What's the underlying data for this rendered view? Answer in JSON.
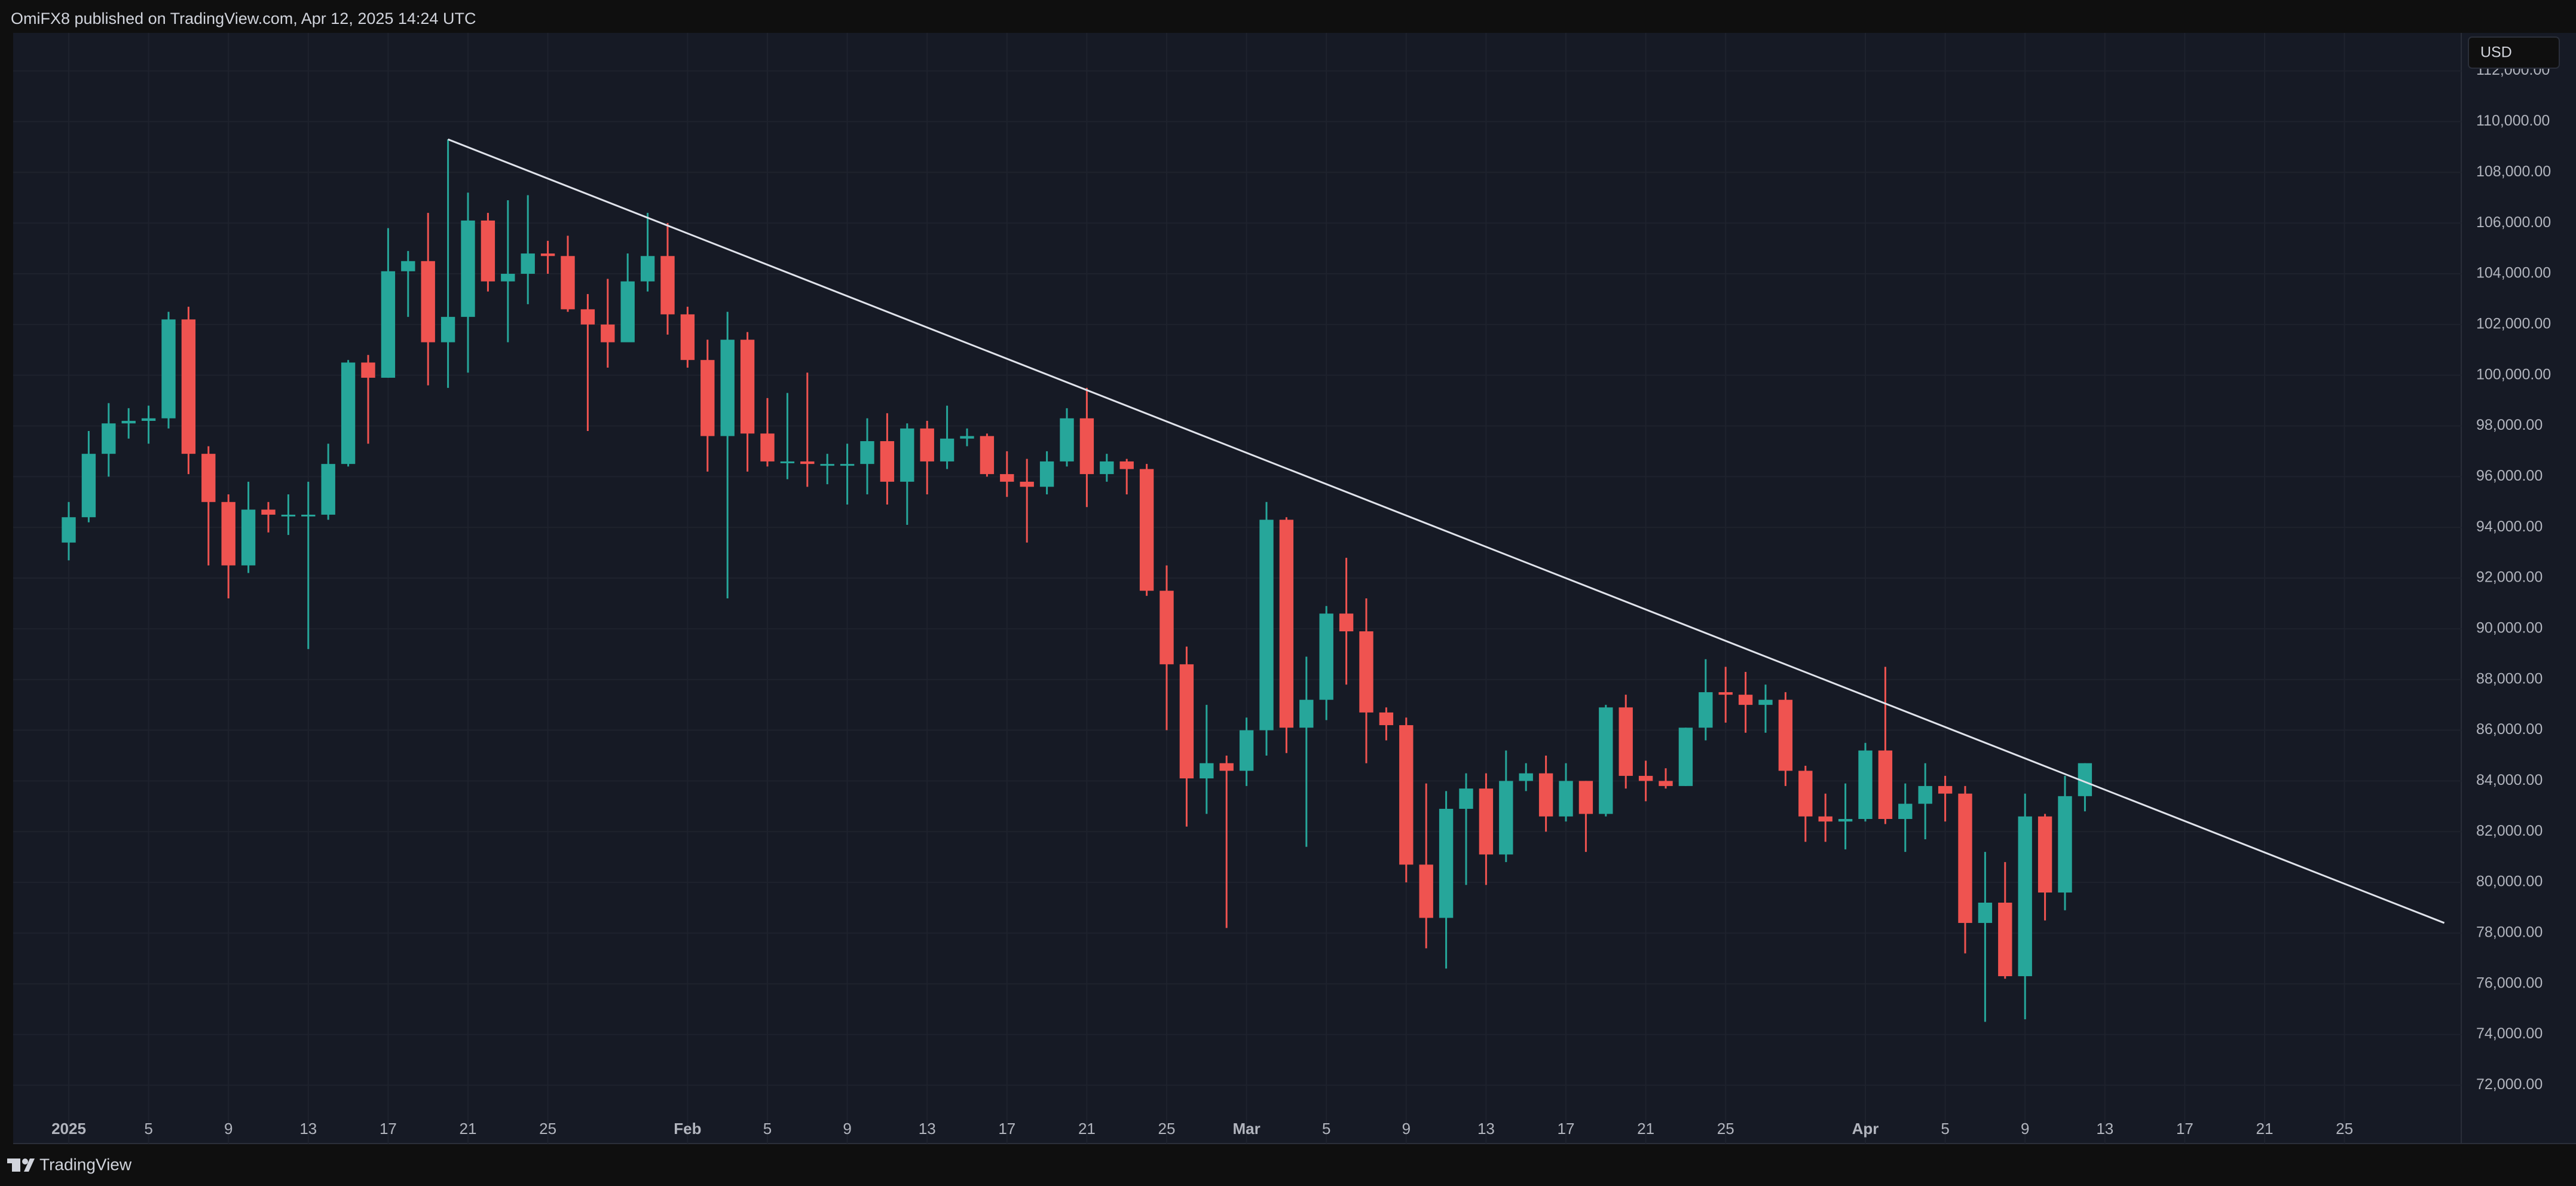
{
  "header": "OmiFX8 published on TradingView.com, Apr 12, 2025 14:24 UTC",
  "footer": "TradingView",
  "chart_data": {
    "type": "candlestick",
    "currency": "USD",
    "up_color": "#26a69a",
    "down_color": "#ef5350",
    "grid": true,
    "x": [
      "2025-01-01",
      "2025-01-02",
      "2025-01-03",
      "2025-01-04",
      "2025-01-05",
      "2025-01-06",
      "2025-01-07",
      "2025-01-08",
      "2025-01-09",
      "2025-01-10",
      "2025-01-11",
      "2025-01-12",
      "2025-01-13",
      "2025-01-14",
      "2025-01-15",
      "2025-01-16",
      "2025-01-17",
      "2025-01-18",
      "2025-01-19",
      "2025-01-20",
      "2025-01-21",
      "2025-01-22",
      "2025-01-23",
      "2025-01-24",
      "2025-01-25",
      "2025-01-26",
      "2025-01-27",
      "2025-01-28",
      "2025-01-29",
      "2025-01-30",
      "2025-01-31",
      "2025-02-01",
      "2025-02-02",
      "2025-02-03",
      "2025-02-04",
      "2025-02-05",
      "2025-02-06",
      "2025-02-07",
      "2025-02-08",
      "2025-02-09",
      "2025-02-10",
      "2025-02-11",
      "2025-02-12",
      "2025-02-13",
      "2025-02-14",
      "2025-02-15",
      "2025-02-16",
      "2025-02-17",
      "2025-02-18",
      "2025-02-19",
      "2025-02-20",
      "2025-02-21",
      "2025-02-22",
      "2025-02-23",
      "2025-02-24",
      "2025-02-25",
      "2025-02-26",
      "2025-02-27",
      "2025-02-28",
      "2025-03-01",
      "2025-03-02",
      "2025-03-03",
      "2025-03-04",
      "2025-03-05",
      "2025-03-06",
      "2025-03-07",
      "2025-03-08",
      "2025-03-09",
      "2025-03-10",
      "2025-03-11",
      "2025-03-12",
      "2025-03-13",
      "2025-03-14",
      "2025-03-15",
      "2025-03-16",
      "2025-03-17",
      "2025-03-18",
      "2025-03-19",
      "2025-03-20",
      "2025-03-21",
      "2025-03-22",
      "2025-03-23",
      "2025-03-24",
      "2025-03-25",
      "2025-03-26",
      "2025-03-27",
      "2025-03-28",
      "2025-03-29",
      "2025-03-30",
      "2025-03-31",
      "2025-04-01",
      "2025-04-02",
      "2025-04-03",
      "2025-04-04",
      "2025-04-05",
      "2025-04-06",
      "2025-04-07",
      "2025-04-08",
      "2025-04-09",
      "2025-04-10",
      "2025-04-11",
      "2025-04-12"
    ],
    "open": [
      93400,
      94400,
      96900,
      98100,
      98200,
      98300,
      102200,
      96900,
      95000,
      92500,
      94700,
      94500,
      94500,
      94500,
      96500,
      100500,
      99900,
      104100,
      104500,
      101300,
      102300,
      106100,
      103700,
      104000,
      104800,
      104700,
      102600,
      102000,
      101300,
      103700,
      104700,
      102400,
      100600,
      97600,
      101400,
      97700,
      96600,
      96600,
      96500,
      96500,
      96500,
      97400,
      95800,
      97900,
      96600,
      97500,
      97600,
      96100,
      95800,
      95600,
      96600,
      98300,
      96100,
      96600,
      96300,
      91500,
      88600,
      84100,
      84700,
      84400,
      86000,
      94300,
      86100,
      87200,
      90600,
      89900,
      86700,
      86200,
      80700,
      78600,
      82900,
      83700,
      81100,
      84000,
      84300,
      82600,
      84000,
      82700,
      86900,
      84200,
      84000,
      83800,
      86100,
      87500,
      87400,
      87000,
      87200,
      84400,
      82600,
      82400,
      82500,
      85200,
      82500,
      83100,
      83800,
      83500,
      78400,
      79200,
      76300,
      82600,
      79600,
      83400
    ],
    "high": [
      95000,
      97800,
      98900,
      98700,
      98800,
      102500,
      102700,
      97200,
      95300,
      95800,
      95000,
      95300,
      95800,
      97300,
      100600,
      100800,
      105800,
      104900,
      106400,
      109300,
      107200,
      106400,
      106900,
      107100,
      105300,
      105500,
      103200,
      103800,
      104800,
      106400,
      106000,
      102700,
      101400,
      102500,
      101700,
      99100,
      99300,
      100100,
      96900,
      97300,
      98300,
      98500,
      98100,
      98200,
      98800,
      97900,
      97700,
      97000,
      96700,
      97000,
      98700,
      99500,
      96900,
      96700,
      96500,
      92500,
      89300,
      87000,
      85000,
      86500,
      95000,
      94400,
      88900,
      90900,
      92800,
      91200,
      86900,
      86500,
      83900,
      83600,
      84300,
      84300,
      85200,
      84700,
      85000,
      84700,
      84000,
      87000,
      87400,
      84800,
      84500,
      86100,
      88800,
      88500,
      88300,
      87800,
      87500,
      84600,
      83500,
      83900,
      85500,
      88500,
      83900,
      84700,
      84200,
      83800,
      81200,
      80800,
      83500,
      82700,
      84200,
      84700
    ],
    "low": [
      92700,
      94200,
      96000,
      97500,
      97300,
      97900,
      96100,
      92500,
      91200,
      92200,
      93800,
      93700,
      89200,
      94300,
      96400,
      97300,
      99900,
      102300,
      99600,
      99500,
      100100,
      103300,
      101300,
      102800,
      104000,
      102500,
      97800,
      100300,
      101300,
      103300,
      101600,
      100300,
      96200,
      91200,
      96200,
      96400,
      95900,
      95600,
      95700,
      94900,
      95300,
      94900,
      94100,
      95300,
      96300,
      97200,
      96000,
      95200,
      93400,
      95300,
      96400,
      94800,
      95800,
      95300,
      91300,
      86000,
      82200,
      82700,
      78200,
      83800,
      85000,
      85100,
      81400,
      86400,
      87800,
      84700,
      85600,
      80000,
      77400,
      76600,
      79900,
      79900,
      80800,
      83600,
      82000,
      82400,
      81200,
      82600,
      83700,
      83200,
      83700,
      83800,
      85600,
      86300,
      85900,
      85900,
      83800,
      81600,
      81600,
      81300,
      82400,
      82300,
      81200,
      81700,
      82400,
      77200,
      74500,
      76200,
      74600,
      78500,
      78900,
      82800
    ],
    "close": [
      94400,
      96900,
      98100,
      98200,
      98300,
      102200,
      96900,
      95000,
      92500,
      94700,
      94500,
      94500,
      94500,
      96500,
      100500,
      99900,
      104100,
      104500,
      101300,
      102300,
      106100,
      103700,
      104000,
      104800,
      104700,
      102600,
      102000,
      101300,
      103700,
      104700,
      102400,
      100600,
      97600,
      101400,
      97700,
      96600,
      96600,
      96500,
      96500,
      96500,
      97400,
      95800,
      97900,
      96600,
      97500,
      97600,
      96100,
      95800,
      95600,
      96600,
      98300,
      96100,
      96600,
      96300,
      91500,
      88600,
      84100,
      84700,
      84400,
      86000,
      94300,
      86100,
      87200,
      90600,
      89900,
      86700,
      86200,
      80700,
      78600,
      82900,
      83700,
      81100,
      84000,
      84300,
      82600,
      84000,
      82700,
      86900,
      84200,
      84000,
      83800,
      86100,
      87500,
      87400,
      87000,
      87200,
      84400,
      82600,
      82400,
      82500,
      85200,
      82500,
      83100,
      83800,
      83500,
      78400,
      79200,
      76300,
      82600,
      79600,
      83400,
      84700
    ],
    "trendline": {
      "x": [
        "2025-01-20",
        "2025-04-30"
      ],
      "y": [
        109300,
        78400
      ],
      "color": "#e0e3eb"
    },
    "xlim": [
      "2025-01-01",
      "2025-05-01"
    ],
    "xticks": [
      {
        "value": "2025-01-01",
        "label": "2025"
      },
      {
        "value": "2025-01-05",
        "label": "5"
      },
      {
        "value": "2025-01-09",
        "label": "9"
      },
      {
        "value": "2025-01-13",
        "label": "13"
      },
      {
        "value": "2025-01-17",
        "label": "17"
      },
      {
        "value": "2025-01-21",
        "label": "21"
      },
      {
        "value": "2025-01-25",
        "label": "25"
      },
      {
        "value": "2025-02-01",
        "label": "Feb"
      },
      {
        "value": "2025-02-05",
        "label": "5"
      },
      {
        "value": "2025-02-09",
        "label": "9"
      },
      {
        "value": "2025-02-13",
        "label": "13"
      },
      {
        "value": "2025-02-17",
        "label": "17"
      },
      {
        "value": "2025-02-21",
        "label": "21"
      },
      {
        "value": "2025-02-25",
        "label": "25"
      },
      {
        "value": "2025-03-01",
        "label": "Mar"
      },
      {
        "value": "2025-03-05",
        "label": "5"
      },
      {
        "value": "2025-03-09",
        "label": "9"
      },
      {
        "value": "2025-03-13",
        "label": "13"
      },
      {
        "value": "2025-03-17",
        "label": "17"
      },
      {
        "value": "2025-03-21",
        "label": "21"
      },
      {
        "value": "2025-03-25",
        "label": "25"
      },
      {
        "value": "2025-04-01",
        "label": "Apr"
      },
      {
        "value": "2025-04-05",
        "label": "5"
      },
      {
        "value": "2025-04-09",
        "label": "9"
      },
      {
        "value": "2025-04-13",
        "label": "13"
      },
      {
        "value": "2025-04-17",
        "label": "17"
      },
      {
        "value": "2025-04-21",
        "label": "21"
      },
      {
        "value": "2025-04-25",
        "label": "25"
      }
    ],
    "ylim": [
      69700,
      113500
    ],
    "yticks": [
      {
        "value": 72000,
        "label": "72,000.00"
      },
      {
        "value": 74000,
        "label": "74,000.00"
      },
      {
        "value": 76000,
        "label": "76,000.00"
      },
      {
        "value": 78000,
        "label": "78,000.00"
      },
      {
        "value": 80000,
        "label": "80,000.00"
      },
      {
        "value": 82000,
        "label": "82,000.00"
      },
      {
        "value": 84000,
        "label": "84,000.00"
      },
      {
        "value": 86000,
        "label": "86,000.00"
      },
      {
        "value": 88000,
        "label": "88,000.00"
      },
      {
        "value": 90000,
        "label": "90,000.00"
      },
      {
        "value": 92000,
        "label": "92,000.00"
      },
      {
        "value": 94000,
        "label": "94,000.00"
      },
      {
        "value": 96000,
        "label": "96,000.00"
      },
      {
        "value": 98000,
        "label": "98,000.00"
      },
      {
        "value": 100000,
        "label": "100,000.00"
      },
      {
        "value": 102000,
        "label": "102,000.00"
      },
      {
        "value": 104000,
        "label": "104,000.00"
      },
      {
        "value": 106000,
        "label": "106,000.00"
      },
      {
        "value": 108000,
        "label": "108,000.00"
      },
      {
        "value": 110000,
        "label": "110,000.00"
      },
      {
        "value": 112000,
        "label": "112,000.00"
      }
    ]
  }
}
